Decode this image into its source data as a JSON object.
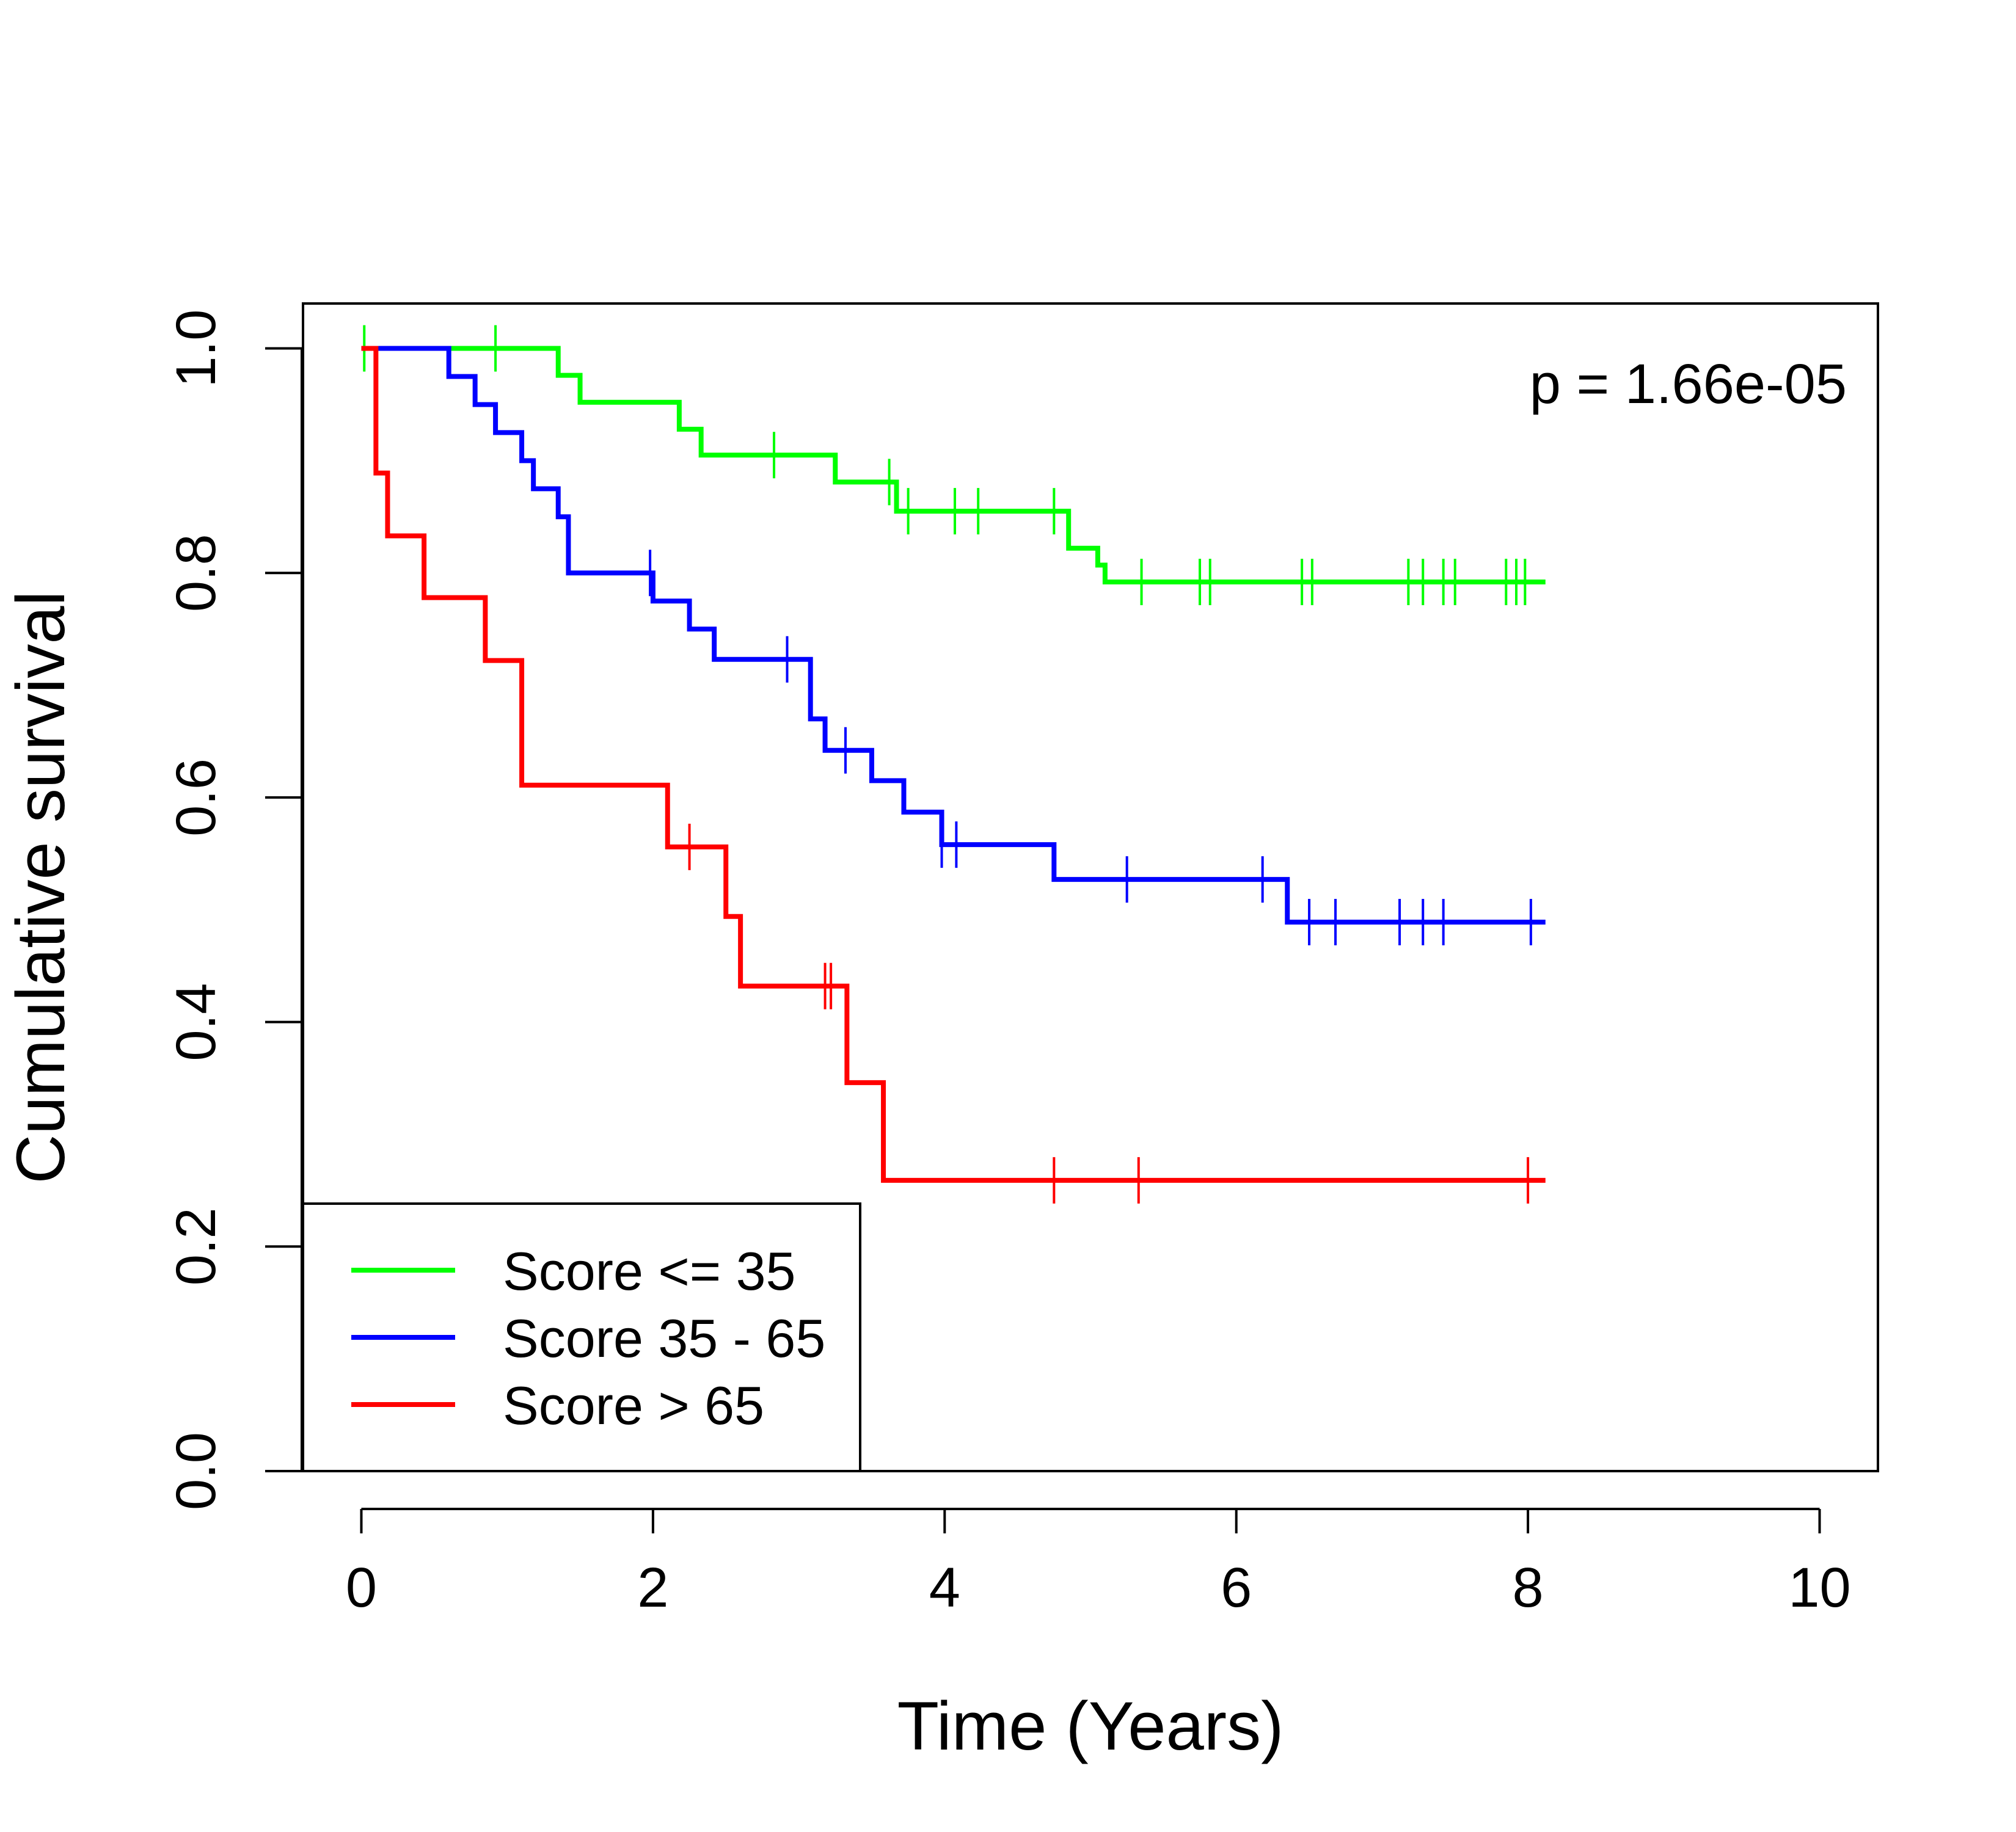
{
  "chart_data": {
    "type": "line",
    "subtype": "kaplan-meier",
    "title": "",
    "xlabel": "Time (Years)",
    "ylabel": "Cumulative survival",
    "xlim": [
      -0.4,
      10.4
    ],
    "ylim": [
      0.0,
      1.04
    ],
    "xticks": [
      0,
      2,
      4,
      6,
      8,
      10
    ],
    "xtick_labels": [
      "0",
      "2",
      "4",
      "6",
      "8",
      "10"
    ],
    "yticks": [
      0.0,
      0.2,
      0.4,
      0.6,
      0.8,
      1.0
    ],
    "ytick_labels": [
      "0.0",
      "0.2",
      "0.4",
      "0.6",
      "0.8",
      "1.0"
    ],
    "annotation": "p = 1.66e-05",
    "legend_position": "bottom-left",
    "grid": false,
    "series": [
      {
        "name": "Score <= 35",
        "color": "#00ff00",
        "steps": [
          [
            0.0,
            1.0
          ],
          [
            1.35,
            0.976
          ],
          [
            1.5,
            0.952
          ],
          [
            2.18,
            0.928
          ],
          [
            2.33,
            0.905
          ],
          [
            3.25,
            0.881
          ],
          [
            3.67,
            0.855
          ],
          [
            4.85,
            0.822
          ],
          [
            5.05,
            0.807
          ],
          [
            5.1,
            0.792
          ],
          [
            8.12,
            0.792
          ]
        ],
        "censor_times": [
          0.02,
          0.92,
          2.83,
          3.62,
          3.75,
          4.07,
          4.23,
          4.75,
          5.35,
          5.75,
          5.82,
          6.45,
          6.52,
          7.18,
          7.28,
          7.42,
          7.5,
          7.85,
          7.92,
          7.98
        ]
      },
      {
        "name": "Score 35 - 65",
        "color": "#0000ff",
        "steps": [
          [
            0.0,
            1.0
          ],
          [
            0.6,
            0.975
          ],
          [
            0.78,
            0.95
          ],
          [
            0.92,
            0.925
          ],
          [
            1.1,
            0.9
          ],
          [
            1.18,
            0.875
          ],
          [
            1.35,
            0.85
          ],
          [
            1.42,
            0.8
          ],
          [
            2.0,
            0.775
          ],
          [
            2.25,
            0.75
          ],
          [
            2.42,
            0.723
          ],
          [
            3.08,
            0.67
          ],
          [
            3.18,
            0.642
          ],
          [
            3.5,
            0.615
          ],
          [
            3.72,
            0.587
          ],
          [
            3.98,
            0.558
          ],
          [
            4.75,
            0.527
          ],
          [
            6.35,
            0.489
          ],
          [
            8.12,
            0.489
          ]
        ],
        "censor_times": [
          1.98,
          2.92,
          3.32,
          3.98,
          4.08,
          5.25,
          6.18,
          6.5,
          6.68,
          7.12,
          7.28,
          7.42,
          8.02
        ]
      },
      {
        "name": "Score > 65",
        "color": "#ff0000",
        "steps": [
          [
            0.0,
            1.0
          ],
          [
            0.1,
            0.889
          ],
          [
            0.18,
            0.833
          ],
          [
            0.43,
            0.778
          ],
          [
            0.85,
            0.722
          ],
          [
            1.1,
            0.611
          ],
          [
            2.1,
            0.556
          ],
          [
            2.5,
            0.494
          ],
          [
            2.6,
            0.432
          ],
          [
            3.33,
            0.346
          ],
          [
            3.58,
            0.259
          ],
          [
            8.12,
            0.259
          ]
        ],
        "censor_times": [
          2.25,
          3.18,
          3.22,
          4.75,
          5.33,
          8.0
        ]
      }
    ]
  }
}
